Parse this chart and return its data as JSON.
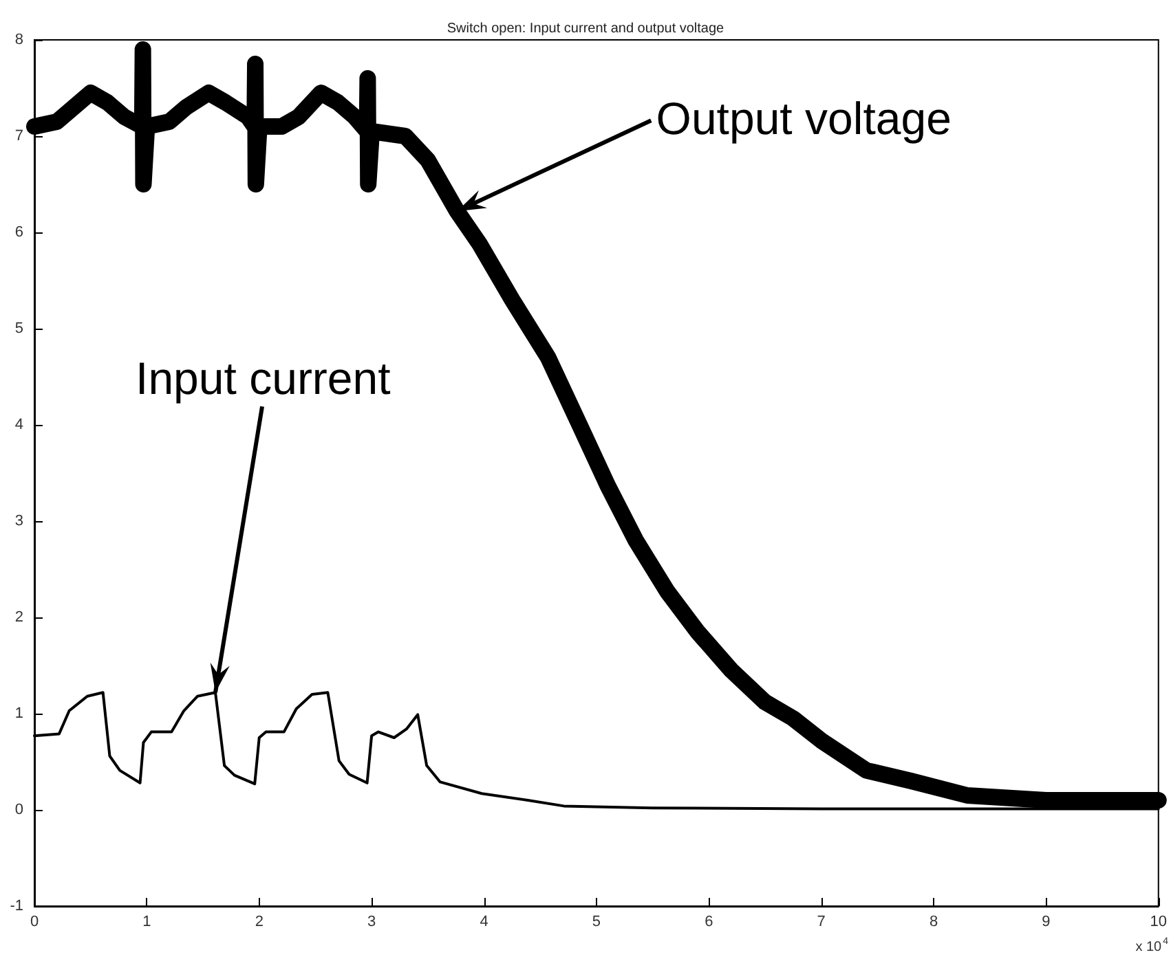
{
  "chart_data": {
    "type": "line",
    "title": "Switch open: Input current and output voltage",
    "xlabel": "x 10$^{4}$",
    "xlim": [
      0,
      10
    ],
    "xticks": [
      0,
      1,
      2,
      3,
      4,
      5,
      6,
      7,
      8,
      9,
      10
    ],
    "ylim": [
      -1,
      8
    ],
    "yticks": [
      -1,
      0,
      1,
      2,
      3,
      4,
      5,
      6,
      7,
      8
    ],
    "grid": false,
    "marker": "none",
    "line_style": "solid",
    "annotations": [
      {
        "text": "Output voltage",
        "x": 3.76,
        "y": 6.22
      },
      {
        "text": "Input current",
        "x": 1.61,
        "y": 1.22
      }
    ],
    "series": [
      {
        "color": "#000000",
        "x": [
          0,
          0.2,
          0.35,
          0.5,
          0.65,
          0.8,
          0.96,
          0.965,
          0.97,
          1.0,
          1.2,
          1.35,
          1.55,
          1.7,
          1.9,
          1.96,
          1.965,
          1.97,
          2.0,
          2.2,
          2.35,
          2.55,
          2.7,
          2.85,
          2.96,
          2.965,
          2.97,
          3.0,
          3.3,
          3.5,
          3.76,
          3.96,
          4.25,
          4.57,
          4.85,
          5.1,
          5.35,
          5.63,
          5.9,
          6.2,
          6.5,
          6.75,
          7.0,
          7.4,
          7.8,
          8.3,
          9,
          10
        ],
        "values": [
          7.1,
          7.15,
          7.3,
          7.45,
          7.35,
          7.2,
          7.1,
          7.9,
          6.5,
          7.1,
          7.15,
          7.3,
          7.45,
          7.35,
          7.2,
          7.1,
          7.75,
          6.5,
          7.1,
          7.1,
          7.2,
          7.45,
          7.35,
          7.2,
          7.05,
          7.6,
          6.5,
          7.05,
          7.0,
          6.75,
          6.22,
          5.88,
          5.3,
          4.7,
          4.0,
          3.37,
          2.8,
          2.27,
          1.85,
          1.45,
          1.12,
          0.95,
          0.72,
          0.41,
          0.3,
          0.15,
          0.1,
          0.1
        ]
      },
      {
        "color": "#000000",
        "x": [
          0,
          0.22,
          0.31,
          0.47,
          0.61,
          0.67,
          0.76,
          0.94,
          0.97,
          1.04,
          1.22,
          1.33,
          1.45,
          1.61,
          1.69,
          1.78,
          1.96,
          2.0,
          2.06,
          2.22,
          2.33,
          2.47,
          2.61,
          2.71,
          2.8,
          2.96,
          3.0,
          3.06,
          3.2,
          3.31,
          3.41,
          3.49,
          3.61,
          3.98,
          4.39,
          4.71,
          5.5,
          7,
          10
        ],
        "values": [
          0.77,
          0.79,
          1.03,
          1.18,
          1.22,
          0.56,
          0.41,
          0.28,
          0.7,
          0.81,
          0.81,
          1.03,
          1.18,
          1.22,
          0.46,
          0.36,
          0.27,
          0.75,
          0.81,
          0.81,
          1.05,
          1.2,
          1.22,
          0.51,
          0.37,
          0.28,
          0.77,
          0.81,
          0.75,
          0.84,
          0.99,
          0.46,
          0.29,
          0.17,
          0.1,
          0.04,
          0.02,
          0.01,
          0.01
        ]
      }
    ]
  }
}
